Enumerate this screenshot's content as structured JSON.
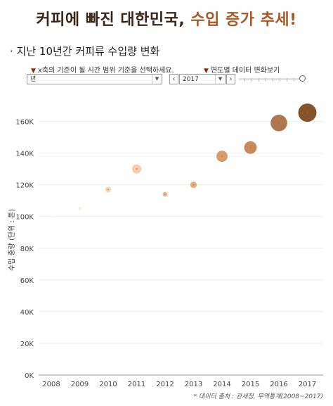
{
  "header": {
    "headline_part1": "커피에 빠진 대한민국,",
    "headline_part2": "수입 증가 추세!",
    "subtitle": "· 지난 10년간 커피류 수입량 변화"
  },
  "controls": {
    "axis_label": "x축의 기준이 될 시간 범위 기준을 선택하세요.",
    "axis_value": "년",
    "year_label": "연도별 데이터 변화보기",
    "year_value": "2017",
    "prev_glyph": "‹",
    "next_glyph": "›",
    "dropdown_glyph": "▼"
  },
  "source": "* 데이터 출처 : 관세청, 무역통계(2008~2017)",
  "chart_data": {
    "type": "scatter",
    "ylabel": "수입 중량 (단위 : 톤)",
    "xlabel": "",
    "title": "",
    "categories": [
      "2008",
      "2009",
      "2010",
      "2011",
      "2012",
      "2013",
      "2014",
      "2015",
      "2016",
      "2017"
    ],
    "ylim": [
      0,
      170000
    ],
    "yticks": [
      0,
      20000,
      40000,
      60000,
      80000,
      100000,
      120000,
      140000,
      160000
    ],
    "ytick_labels": [
      "0K",
      "20K",
      "40K",
      "60K",
      "80K",
      "100K",
      "120K",
      "140K",
      "160K"
    ],
    "grid": "horizontal",
    "legend": "none",
    "points": [
      {
        "x": "2008",
        "y": 100000,
        "color": "#fbeee2"
      },
      {
        "x": "2009",
        "y": 105000,
        "color": "#f8e4d3"
      },
      {
        "x": "2010",
        "y": 117000,
        "color": "#f6d3b5"
      },
      {
        "x": "2011",
        "y": 130000,
        "color": "#f3c8a5"
      },
      {
        "x": "2012",
        "y": 114000,
        "color": "#ecb88e"
      },
      {
        "x": "2013",
        "y": 120000,
        "color": "#e3a678"
      },
      {
        "x": "2014",
        "y": 138000,
        "color": "#d69462"
      },
      {
        "x": "2015",
        "y": 143500,
        "color": "#c47f4d"
      },
      {
        "x": "2016",
        "y": 159000,
        "color": "#a86b40"
      },
      {
        "x": "2017",
        "y": 165500,
        "color": "#7a4415"
      }
    ]
  }
}
